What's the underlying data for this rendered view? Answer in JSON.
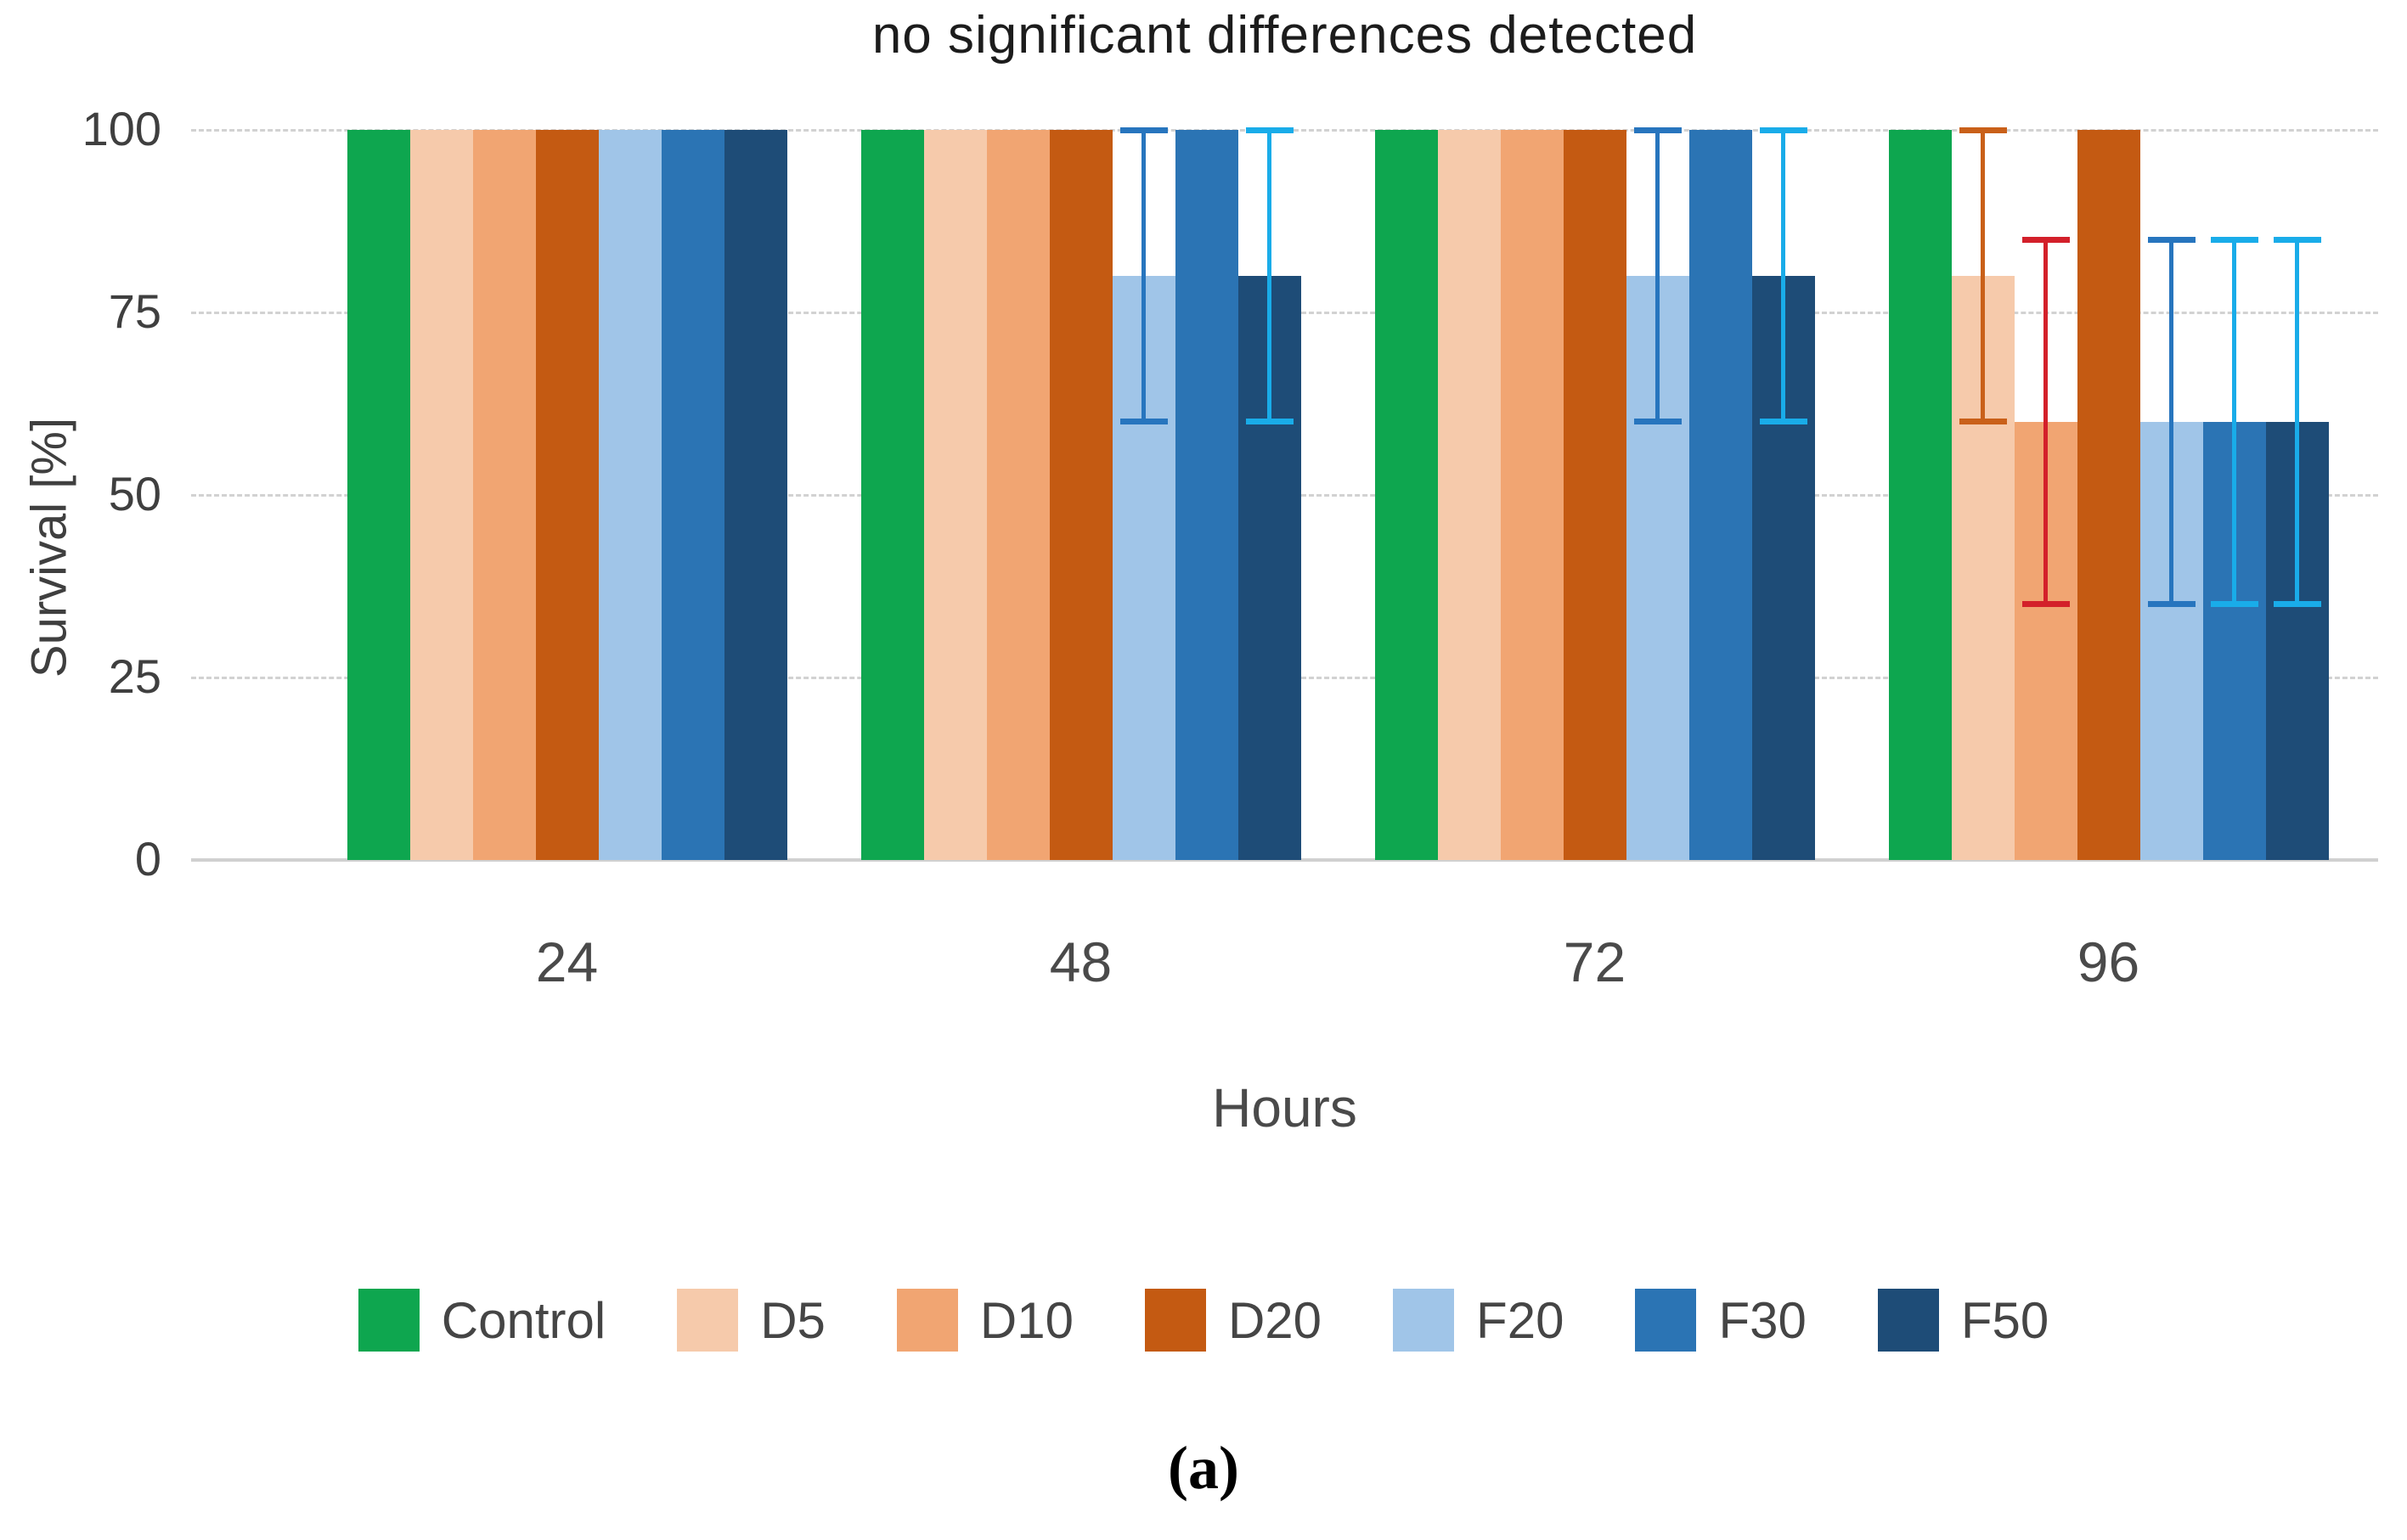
{
  "figure": {
    "caption": "(a)"
  },
  "chart_data": {
    "type": "bar",
    "title": "no significant differences detected",
    "xlabel": "Hours",
    "ylabel": "Survival [%]",
    "ylim": [
      0,
      100
    ],
    "yticks": [
      0,
      25,
      50,
      75,
      100
    ],
    "categories": [
      "24",
      "48",
      "72",
      "96"
    ],
    "grid": "horizontal-dashed",
    "legend_position": "bottom",
    "series": [
      {
        "name": "Control",
        "color": "#0EA64F",
        "values": [
          100,
          100,
          100,
          100
        ],
        "error_bars": [
          null,
          null,
          null,
          null
        ]
      },
      {
        "name": "D5",
        "color": "#F6CAAB",
        "values": [
          100,
          100,
          100,
          80
        ],
        "error_bars": [
          null,
          null,
          null,
          {
            "low": 60,
            "high": 100,
            "color": "#C96019"
          }
        ]
      },
      {
        "name": "D10",
        "color": "#F1A572",
        "values": [
          100,
          100,
          100,
          60
        ],
        "error_bars": [
          null,
          null,
          null,
          {
            "low": 35,
            "high": 85,
            "color": "#D3202A"
          }
        ]
      },
      {
        "name": "D20",
        "color": "#C45A12",
        "values": [
          100,
          100,
          100,
          100
        ],
        "error_bars": [
          null,
          null,
          null,
          null
        ]
      },
      {
        "name": "F20",
        "color": "#A0C5E8",
        "values": [
          100,
          80,
          80,
          60
        ],
        "error_bars": [
          null,
          {
            "low": 60,
            "high": 100,
            "color": "#2775BE"
          },
          {
            "low": 60,
            "high": 100,
            "color": "#2775BE"
          },
          {
            "low": 35,
            "high": 85,
            "color": "#2775BE"
          }
        ]
      },
      {
        "name": "F30",
        "color": "#2B74B4",
        "values": [
          100,
          100,
          100,
          60
        ],
        "error_bars": [
          null,
          null,
          null,
          {
            "low": 35,
            "high": 85,
            "color": "#19ACE9"
          }
        ]
      },
      {
        "name": "F50",
        "color": "#1E4C77",
        "values": [
          100,
          80,
          80,
          60
        ],
        "error_bars": [
          null,
          {
            "low": 60,
            "high": 100,
            "color": "#19ACE9"
          },
          {
            "low": 60,
            "high": 100,
            "color": "#19ACE9"
          },
          {
            "low": 35,
            "high": 85,
            "color": "#19ACE9"
          }
        ]
      }
    ]
  }
}
